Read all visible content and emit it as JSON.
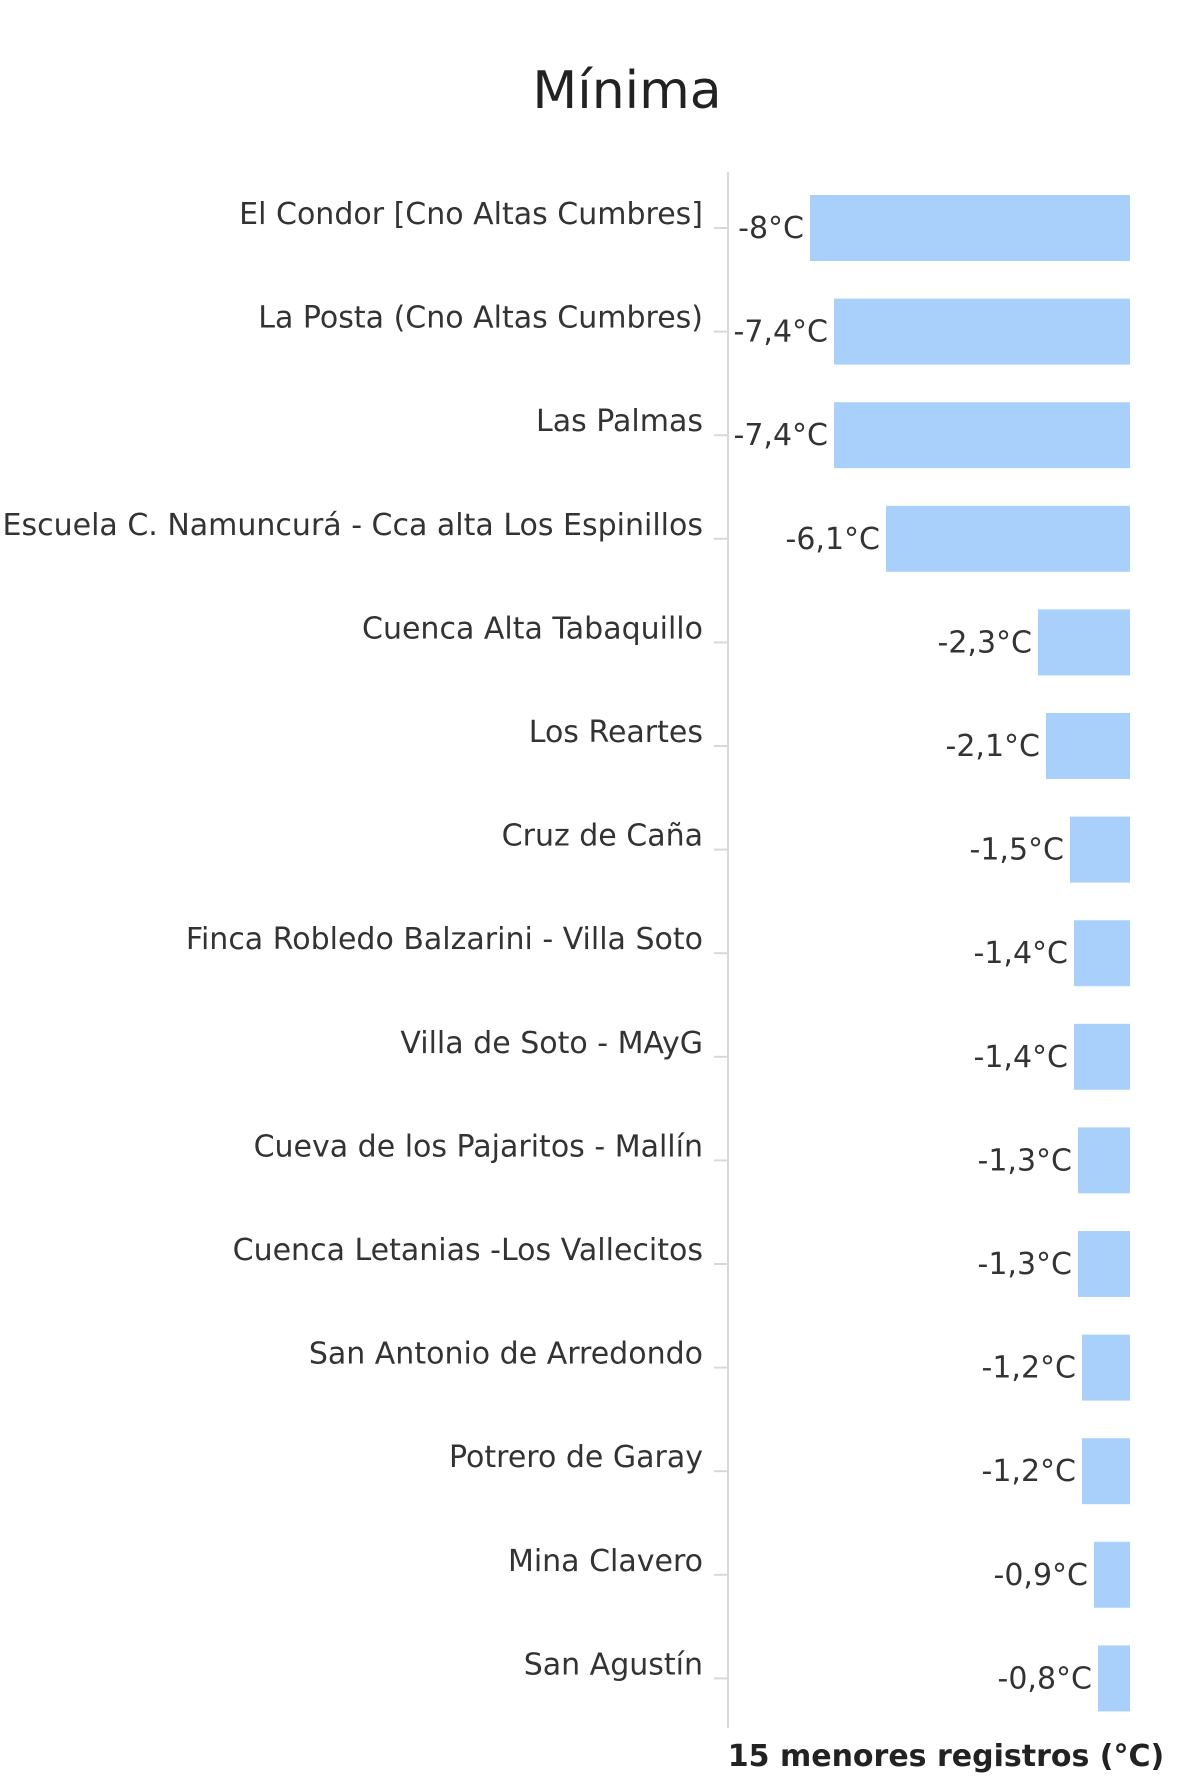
{
  "chart_data": {
    "type": "bar",
    "orientation": "horizontal",
    "title": "Mínima",
    "xlabel": "15 menores registros (°C)",
    "ylabel": "",
    "bar_color": "#a9d0fb",
    "axis_color": "#d8d8d8",
    "grid": false,
    "xlim": [
      -8,
      0
    ],
    "categories": [
      "El Condor [Cno Altas Cumbres]",
      "La Posta (Cno Altas Cumbres)",
      "Las Palmas",
      "Escuela C. Namuncurá - Cca alta Los Espinillos",
      "Cuenca Alta Tabaquillo",
      "Los Reartes",
      "Cruz de Caña",
      "Finca Robledo Balzarini - Villa Soto",
      "Villa de Soto - MAyG",
      "Cueva de los Pajaritos - Mallín",
      "Cuenca Letanias -Los Vallecitos",
      "San Antonio de Arredondo",
      "Potrero de Garay",
      "Mina Clavero",
      "San Agustín"
    ],
    "values": [
      -8,
      -7.4,
      -7.4,
      -6.1,
      -2.3,
      -2.1,
      -1.5,
      -1.4,
      -1.4,
      -1.3,
      -1.3,
      -1.2,
      -1.2,
      -0.9,
      -0.8
    ],
    "value_labels": [
      "-8°C",
      "-7,4°C",
      "-7,4°C",
      "-6,1°C",
      "-2,3°C",
      "-2,1°C",
      "-1,5°C",
      "-1,4°C",
      "-1,4°C",
      "-1,3°C",
      "-1,3°C",
      "-1,2°C",
      "-1,2°C",
      "-0,9°C",
      "-0,8°C"
    ]
  }
}
